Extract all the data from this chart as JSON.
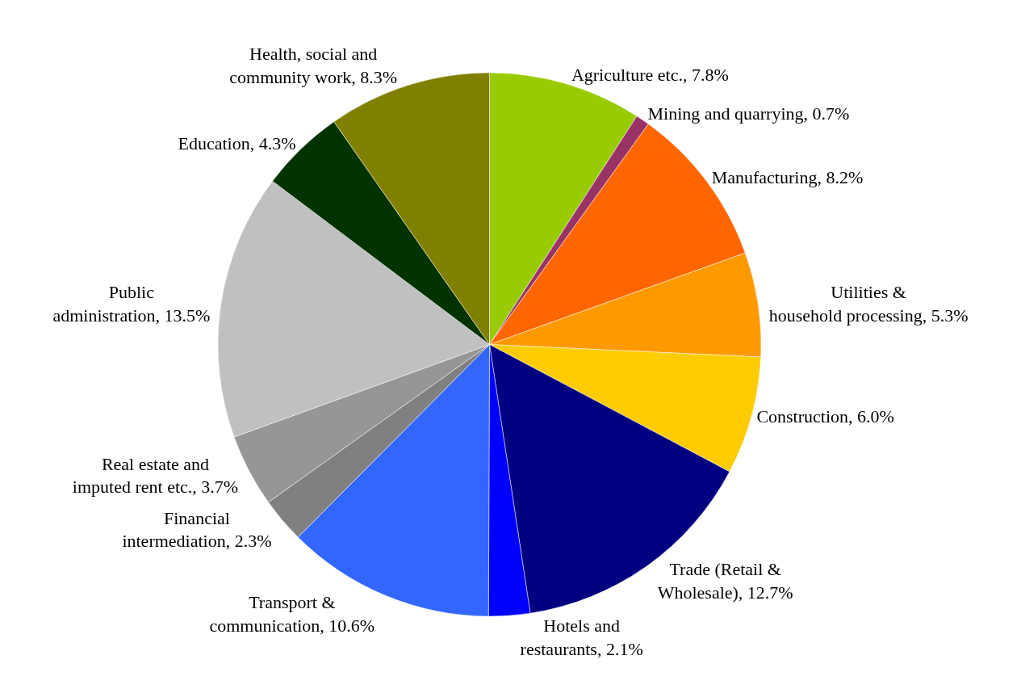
{
  "chart_data": {
    "type": "pie",
    "categories": [
      "Agriculture etc. ",
      "Mining and quarrying",
      "Manufacturing",
      "Utilities & household processing ",
      "Construction",
      "Trade (Retail & Wholesale)",
      "Hotels and restaurants",
      "Transport & communication",
      "Financial intermediation",
      "Real estate and imputed rent etc. ",
      "Public administration",
      "Education",
      "Health, social and community work"
    ],
    "values": [
      7.8,
      0.7,
      8.2,
      5.3,
      6.0,
      12.7,
      2.1,
      10.6,
      2.3,
      3.7,
      13.5,
      4.3,
      8.3
    ],
    "value_labels": [
      "7.8%",
      "0.7%",
      "8.2%",
      "5.3%",
      "6.0%",
      "12.7%",
      "2.1%",
      "10.6%",
      "2.3%",
      "3.7%",
      "13.5%",
      "4.3%",
      "8.3%"
    ],
    "colors": [
      "#99cc00",
      "#993366",
      "#ff6600",
      "#ff9900",
      "#ffcc00",
      "#000080",
      "#0000ff",
      "#3366ff",
      "#808080",
      "#969696",
      "#c0c0c0",
      "#003300",
      "#808000"
    ],
    "legend": false
  }
}
